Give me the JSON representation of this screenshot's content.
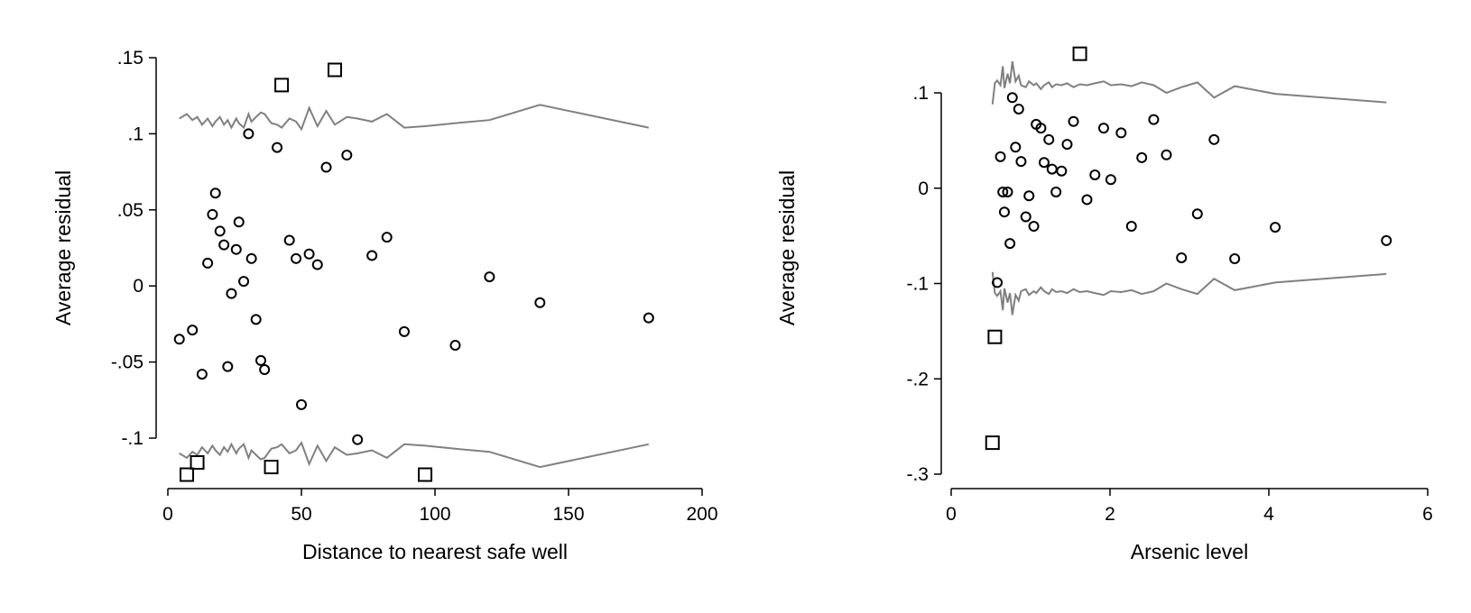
{
  "chart_data": [
    {
      "type": "scatter",
      "title": "",
      "xlabel": "Distance to nearest safe well",
      "ylabel": "Average residual",
      "xlim": [
        0,
        200
      ],
      "ylim": [
        -0.1,
        0.15
      ],
      "xticks": [
        0,
        50,
        100,
        150,
        200
      ],
      "xtick_labels": [
        "0",
        "50",
        "100",
        "150",
        "200"
      ],
      "yticks": [
        0.15,
        0.1,
        0.05,
        0,
        -0.05,
        -0.1
      ],
      "ytick_labels": [
        ".15",
        ".1",
        ".05",
        "0",
        "-.05",
        "-.1"
      ],
      "grid": false,
      "points_inside": [
        [
          4.3,
          -0.035
        ],
        [
          9.2,
          -0.029
        ],
        [
          12.8,
          -0.058
        ],
        [
          14.9,
          0.015
        ],
        [
          16.7,
          0.047
        ],
        [
          17.8,
          0.061
        ],
        [
          19.5,
          0.036
        ],
        [
          21,
          0.027
        ],
        [
          22.4,
          -0.053
        ],
        [
          23.8,
          -0.005
        ],
        [
          25.6,
          0.024
        ],
        [
          26.6,
          0.042
        ],
        [
          28.4,
          0.003
        ],
        [
          30.2,
          0.1
        ],
        [
          31.3,
          0.018
        ],
        [
          33,
          -0.022
        ],
        [
          34.8,
          -0.049
        ],
        [
          36.2,
          -0.055
        ],
        [
          40.9,
          0.091
        ],
        [
          45.5,
          0.03
        ],
        [
          48,
          0.018
        ],
        [
          50,
          -0.078
        ],
        [
          52.9,
          0.021
        ],
        [
          56,
          0.014
        ],
        [
          59.3,
          0.078
        ],
        [
          67,
          0.086
        ],
        [
          71,
          -0.101
        ],
        [
          76.4,
          0.02
        ],
        [
          82,
          0.032
        ],
        [
          88.5,
          -0.03
        ],
        [
          107.6,
          -0.039
        ],
        [
          120.4,
          0.006
        ],
        [
          139.3,
          -0.011
        ],
        [
          180,
          -0.021
        ]
      ],
      "points_outside": [
        [
          42.6,
          0.132
        ],
        [
          62.5,
          0.142
        ],
        [
          7.1,
          -0.124
        ],
        [
          11,
          -0.116
        ],
        [
          38.7,
          -0.119
        ],
        [
          96.3,
          -0.124
        ]
      ],
      "bound_x": [
        4.3,
        7.1,
        9.2,
        11,
        12.8,
        14.9,
        16.7,
        17.8,
        19.5,
        21,
        22.4,
        23.8,
        25.6,
        26.6,
        28.4,
        30.2,
        31.3,
        33,
        34.8,
        36.2,
        38.7,
        40.9,
        42.6,
        45.5,
        48,
        50,
        52.9,
        56,
        59.3,
        62.5,
        67,
        71,
        76.4,
        82,
        88.5,
        96.3,
        107.6,
        120.4,
        139.3,
        180
      ],
      "bound_y": [
        0.11,
        0.113,
        0.109,
        0.111,
        0.106,
        0.11,
        0.105,
        0.108,
        0.111,
        0.106,
        0.109,
        0.104,
        0.11,
        0.107,
        0.104,
        0.113,
        0.108,
        0.111,
        0.114,
        0.113,
        0.107,
        0.106,
        0.104,
        0.11,
        0.108,
        0.103,
        0.117,
        0.105,
        0.115,
        0.106,
        0.111,
        0.11,
        0.108,
        0.113,
        0.104,
        0.105,
        0.107,
        0.109,
        0.119,
        0.104
      ],
      "colors": {
        "points": "#000000",
        "bounds": "#808080"
      }
    },
    {
      "type": "scatter",
      "title": "",
      "xlabel": "Arsenic level",
      "ylabel": "Average residual",
      "xlim": [
        0,
        6
      ],
      "ylim": [
        -0.3,
        0.1
      ],
      "xticks": [
        0,
        2,
        4,
        6
      ],
      "xtick_labels": [
        "0",
        "2",
        "4",
        "6"
      ],
      "yticks": [
        0.1,
        0,
        -0.1,
        -0.2,
        -0.3
      ],
      "ytick_labels": [
        ".1",
        "0",
        "-.1",
        "-.2",
        "-.3"
      ],
      "grid": false,
      "points_inside": [
        [
          0.58,
          -0.099
        ],
        [
          0.62,
          0.033
        ],
        [
          0.65,
          -0.004
        ],
        [
          0.67,
          -0.025
        ],
        [
          0.71,
          -0.004
        ],
        [
          0.74,
          -0.058
        ],
        [
          0.77,
          0.095
        ],
        [
          0.81,
          0.043
        ],
        [
          0.85,
          0.083
        ],
        [
          0.88,
          0.028
        ],
        [
          0.94,
          -0.03
        ],
        [
          0.98,
          -0.008
        ],
        [
          1.04,
          -0.04
        ],
        [
          1.07,
          0.067
        ],
        [
          1.13,
          0.063
        ],
        [
          1.17,
          0.027
        ],
        [
          1.23,
          0.051
        ],
        [
          1.27,
          0.02
        ],
        [
          1.32,
          -0.004
        ],
        [
          1.39,
          0.018
        ],
        [
          1.46,
          0.046
        ],
        [
          1.54,
          0.07
        ],
        [
          1.71,
          -0.012
        ],
        [
          1.81,
          0.014
        ],
        [
          1.92,
          0.063
        ],
        [
          2.01,
          0.009
        ],
        [
          2.14,
          0.058
        ],
        [
          2.27,
          -0.04
        ],
        [
          2.4,
          0.032
        ],
        [
          2.55,
          0.072
        ],
        [
          2.71,
          0.035
        ],
        [
          3.1,
          -0.027
        ],
        [
          2.9,
          -0.073
        ],
        [
          3.31,
          0.051
        ],
        [
          3.57,
          -0.074
        ],
        [
          4.08,
          -0.041
        ],
        [
          5.48,
          -0.055
        ]
      ],
      "points_outside": [
        [
          1.62,
          0.141
        ],
        [
          0.55,
          -0.156
        ],
        [
          0.52,
          -0.267
        ]
      ],
      "bound_x": [
        0.52,
        0.55,
        0.58,
        0.62,
        0.65,
        0.67,
        0.71,
        0.74,
        0.77,
        0.81,
        0.85,
        0.88,
        0.94,
        0.98,
        1.04,
        1.07,
        1.13,
        1.17,
        1.23,
        1.27,
        1.32,
        1.39,
        1.46,
        1.54,
        1.62,
        1.71,
        1.81,
        1.92,
        2.01,
        2.14,
        2.27,
        2.4,
        2.55,
        2.71,
        2.9,
        3.1,
        3.31,
        3.57,
        4.08,
        5.48
      ],
      "bound_y": [
        0.088,
        0.11,
        0.113,
        0.108,
        0.128,
        0.105,
        0.12,
        0.11,
        0.133,
        0.112,
        0.118,
        0.108,
        0.106,
        0.112,
        0.108,
        0.11,
        0.104,
        0.108,
        0.111,
        0.106,
        0.109,
        0.108,
        0.11,
        0.106,
        0.109,
        0.108,
        0.11,
        0.112,
        0.108,
        0.109,
        0.107,
        0.111,
        0.108,
        0.1,
        0.106,
        0.111,
        0.095,
        0.107,
        0.099,
        0.09
      ],
      "colors": {
        "points": "#000000",
        "bounds": "#808080"
      }
    }
  ]
}
